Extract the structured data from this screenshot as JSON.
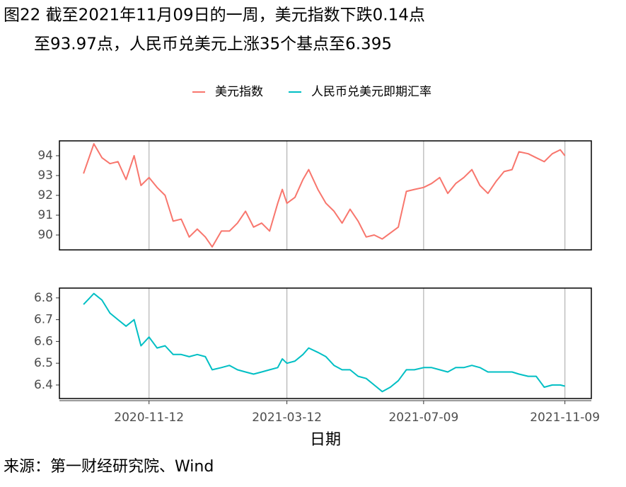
{
  "title": [
    "图22  截至2021年11月09日的一周，美元指数下跌0.14点",
    "至93.97点，人民币兑美元上涨35个基点至6.395"
  ],
  "source": "来源：第一财经研究院、Wind",
  "chart_data": [
    {
      "type": "line",
      "x": [
        "2020-09-16",
        "2020-09-25",
        "2020-10-02",
        "2020-10-09",
        "2020-10-16",
        "2020-10-23",
        "2020-10-30",
        "2020-11-05",
        "2020-11-12",
        "2020-11-19",
        "2020-11-26",
        "2020-12-03",
        "2020-12-10",
        "2020-12-17",
        "2020-12-24",
        "2020-12-31",
        "2021-01-06",
        "2021-01-14",
        "2021-01-21",
        "2021-01-28",
        "2021-02-04",
        "2021-02-11",
        "2021-02-18",
        "2021-02-25",
        "2021-03-04",
        "2021-03-08",
        "2021-03-12",
        "2021-03-19",
        "2021-03-26",
        "2021-03-31",
        "2021-04-08",
        "2021-04-15",
        "2021-04-22",
        "2021-04-29",
        "2021-05-06",
        "2021-05-13",
        "2021-05-20",
        "2021-05-27",
        "2021-06-03",
        "2021-06-10",
        "2021-06-17",
        "2021-06-24",
        "2021-07-01",
        "2021-07-09",
        "2021-07-16",
        "2021-07-23",
        "2021-07-30",
        "2021-08-06",
        "2021-08-13",
        "2021-08-20",
        "2021-08-27",
        "2021-09-03",
        "2021-09-10",
        "2021-09-17",
        "2021-09-24",
        "2021-09-30",
        "2021-10-08",
        "2021-10-15",
        "2021-10-22",
        "2021-10-29",
        "2021-11-05",
        "2021-11-09"
      ],
      "series": [
        {
          "name": "美元指数",
          "color": "#f8766d",
          "values": [
            93.1,
            94.6,
            93.9,
            93.6,
            93.7,
            92.8,
            94.0,
            92.5,
            92.9,
            92.4,
            92.0,
            90.7,
            90.8,
            89.9,
            90.3,
            89.9,
            89.4,
            90.2,
            90.2,
            90.6,
            91.2,
            90.4,
            90.6,
            90.2,
            91.6,
            92.3,
            91.6,
            91.9,
            92.8,
            93.3,
            92.3,
            91.6,
            91.2,
            90.6,
            91.3,
            90.7,
            89.9,
            90.0,
            89.8,
            90.1,
            90.4,
            92.2,
            92.3,
            92.4,
            92.6,
            92.9,
            92.1,
            92.6,
            92.9,
            93.3,
            92.5,
            92.1,
            92.7,
            93.2,
            93.3,
            94.2,
            94.1,
            93.9,
            93.7,
            94.1,
            94.3,
            94.0
          ]
        }
      ],
      "xlim": [
        "2020-08-26",
        "2021-12-02"
      ],
      "xticks": [
        "2020-11-12",
        "2021-03-12",
        "2021-07-09",
        "2021-11-09"
      ],
      "ylim": [
        89.25,
        94.75
      ],
      "yticks": [
        90,
        91,
        92,
        93,
        94
      ],
      "grid": true
    },
    {
      "type": "line",
      "x": [
        "2020-09-16",
        "2020-09-25",
        "2020-10-02",
        "2020-10-09",
        "2020-10-16",
        "2020-10-23",
        "2020-10-30",
        "2020-11-05",
        "2020-11-12",
        "2020-11-19",
        "2020-11-26",
        "2020-12-03",
        "2020-12-10",
        "2020-12-17",
        "2020-12-24",
        "2020-12-31",
        "2021-01-06",
        "2021-01-14",
        "2021-01-21",
        "2021-01-28",
        "2021-02-04",
        "2021-02-11",
        "2021-02-18",
        "2021-02-25",
        "2021-03-04",
        "2021-03-08",
        "2021-03-12",
        "2021-03-19",
        "2021-03-26",
        "2021-03-31",
        "2021-04-08",
        "2021-04-15",
        "2021-04-22",
        "2021-04-29",
        "2021-05-06",
        "2021-05-13",
        "2021-05-20",
        "2021-05-27",
        "2021-06-03",
        "2021-06-10",
        "2021-06-17",
        "2021-06-24",
        "2021-07-01",
        "2021-07-09",
        "2021-07-16",
        "2021-07-23",
        "2021-07-30",
        "2021-08-06",
        "2021-08-13",
        "2021-08-20",
        "2021-08-27",
        "2021-09-03",
        "2021-09-10",
        "2021-09-17",
        "2021-09-24",
        "2021-09-30",
        "2021-10-08",
        "2021-10-15",
        "2021-10-22",
        "2021-10-29",
        "2021-11-05",
        "2021-11-09"
      ],
      "series": [
        {
          "name": "人民币兑美元即期汇率",
          "color": "#00bfc4",
          "values": [
            6.77,
            6.82,
            6.79,
            6.73,
            6.7,
            6.67,
            6.7,
            6.58,
            6.62,
            6.57,
            6.58,
            6.54,
            6.54,
            6.53,
            6.54,
            6.53,
            6.47,
            6.48,
            6.49,
            6.47,
            6.46,
            6.45,
            6.46,
            6.47,
            6.48,
            6.52,
            6.5,
            6.51,
            6.54,
            6.57,
            6.55,
            6.53,
            6.49,
            6.47,
            6.47,
            6.44,
            6.43,
            6.4,
            6.37,
            6.39,
            6.42,
            6.47,
            6.47,
            6.48,
            6.48,
            6.47,
            6.46,
            6.48,
            6.48,
            6.49,
            6.48,
            6.46,
            6.46,
            6.46,
            6.46,
            6.45,
            6.44,
            6.44,
            6.39,
            6.4,
            6.4,
            6.395
          ]
        }
      ],
      "xlabel": "日期",
      "xlim": [
        "2020-08-26",
        "2021-12-02"
      ],
      "xticks": [
        "2020-11-12",
        "2021-03-12",
        "2021-07-09",
        "2021-11-09"
      ],
      "ylim": [
        6.338,
        6.845
      ],
      "yticks": [
        6.4,
        6.5,
        6.6,
        6.7,
        6.8
      ],
      "grid": true
    }
  ]
}
